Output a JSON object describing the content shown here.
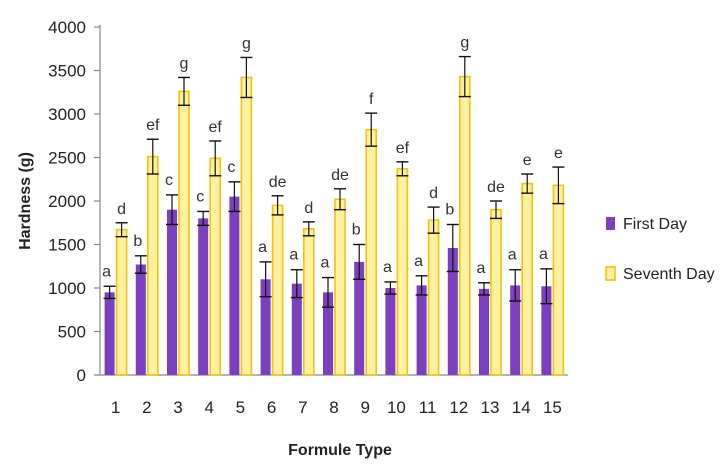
{
  "chart_data": {
    "type": "bar",
    "title": "",
    "xlabel": "Formule Type",
    "ylabel": "Hardness (g)",
    "ylim": [
      0,
      4000
    ],
    "yticks": [
      0,
      500,
      1000,
      1500,
      2000,
      2500,
      3000,
      3500,
      4000
    ],
    "categories": [
      "1",
      "2",
      "3",
      "4",
      "5",
      "6",
      "7",
      "8",
      "9",
      "10",
      "11",
      "12",
      "13",
      "14",
      "15"
    ],
    "legend_position": "right",
    "series": [
      {
        "name": "First Day",
        "color": "#7b3fbf",
        "values": [
          950,
          1270,
          1900,
          1800,
          2050,
          1100,
          1050,
          950,
          1300,
          1000,
          1030,
          1460,
          990,
          1030,
          1020
        ],
        "errors": [
          70,
          100,
          170,
          80,
          170,
          200,
          160,
          170,
          200,
          70,
          110,
          270,
          70,
          180,
          200
        ],
        "letters": [
          "a",
          "b",
          "c",
          "c",
          "c",
          "a",
          "a",
          "a",
          "b",
          "a",
          "a",
          "b",
          "a",
          "a",
          "a"
        ]
      },
      {
        "name": "Seventh Day",
        "color": "#fff1a0",
        "border": "#f1c40f",
        "values": [
          1670,
          2510,
          3260,
          2490,
          3420,
          1950,
          1680,
          2020,
          2820,
          2370,
          1780,
          3430,
          1900,
          2200,
          2180
        ],
        "errors": [
          80,
          200,
          160,
          200,
          230,
          110,
          80,
          120,
          190,
          80,
          150,
          230,
          100,
          110,
          210
        ],
        "letters": [
          "d",
          "ef",
          "g",
          "ef",
          "g",
          "de",
          "d",
          "de",
          "f",
          "ef",
          "d",
          "g",
          "de",
          "e",
          "e"
        ]
      }
    ]
  }
}
